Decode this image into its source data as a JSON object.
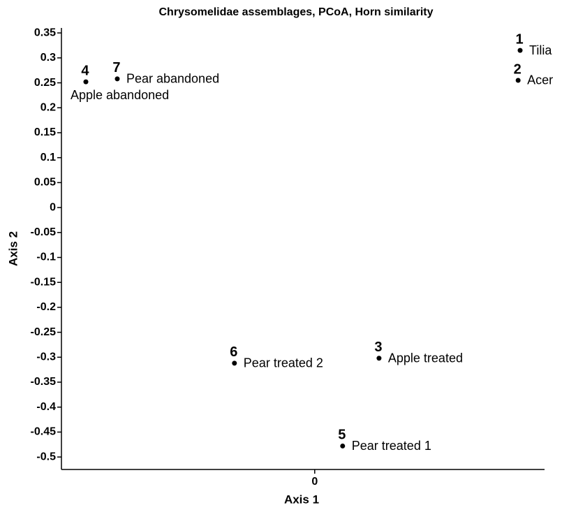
{
  "chart_data": {
    "type": "scatter",
    "title": "Chrysomelidae assemblages, PCoA, Horn similarity",
    "x_label": "Axis 1",
    "y_label": "Axis 2",
    "xlim": [
      -0.508,
      0.461
    ],
    "ylim": [
      -0.525,
      0.36
    ],
    "xticks": [
      0
    ],
    "yticks": [
      0.35,
      0.3,
      0.25,
      0.2,
      0.15,
      0.1,
      0.05,
      0,
      -0.05,
      -0.1,
      -0.15,
      -0.2,
      -0.25,
      -0.3,
      -0.35,
      -0.4,
      -0.45,
      -0.5
    ],
    "series": [
      {
        "color": "#000000",
        "x": [
          0.412,
          0.408,
          0.129,
          -0.459,
          0.056,
          -0.161,
          -0.396
        ],
        "values": [
          0.315,
          0.255,
          -0.302,
          0.252,
          -0.478,
          -0.312,
          0.258
        ],
        "point_numbers": [
          "1",
          "2",
          "3",
          "4",
          "5",
          "6",
          "7"
        ],
        "point_names": [
          "Tilia",
          "Acer",
          "Apple treated",
          "Apple abandoned",
          "Pear treated 1",
          "Pear treated 2",
          "Pear abandoned"
        ]
      }
    ]
  }
}
